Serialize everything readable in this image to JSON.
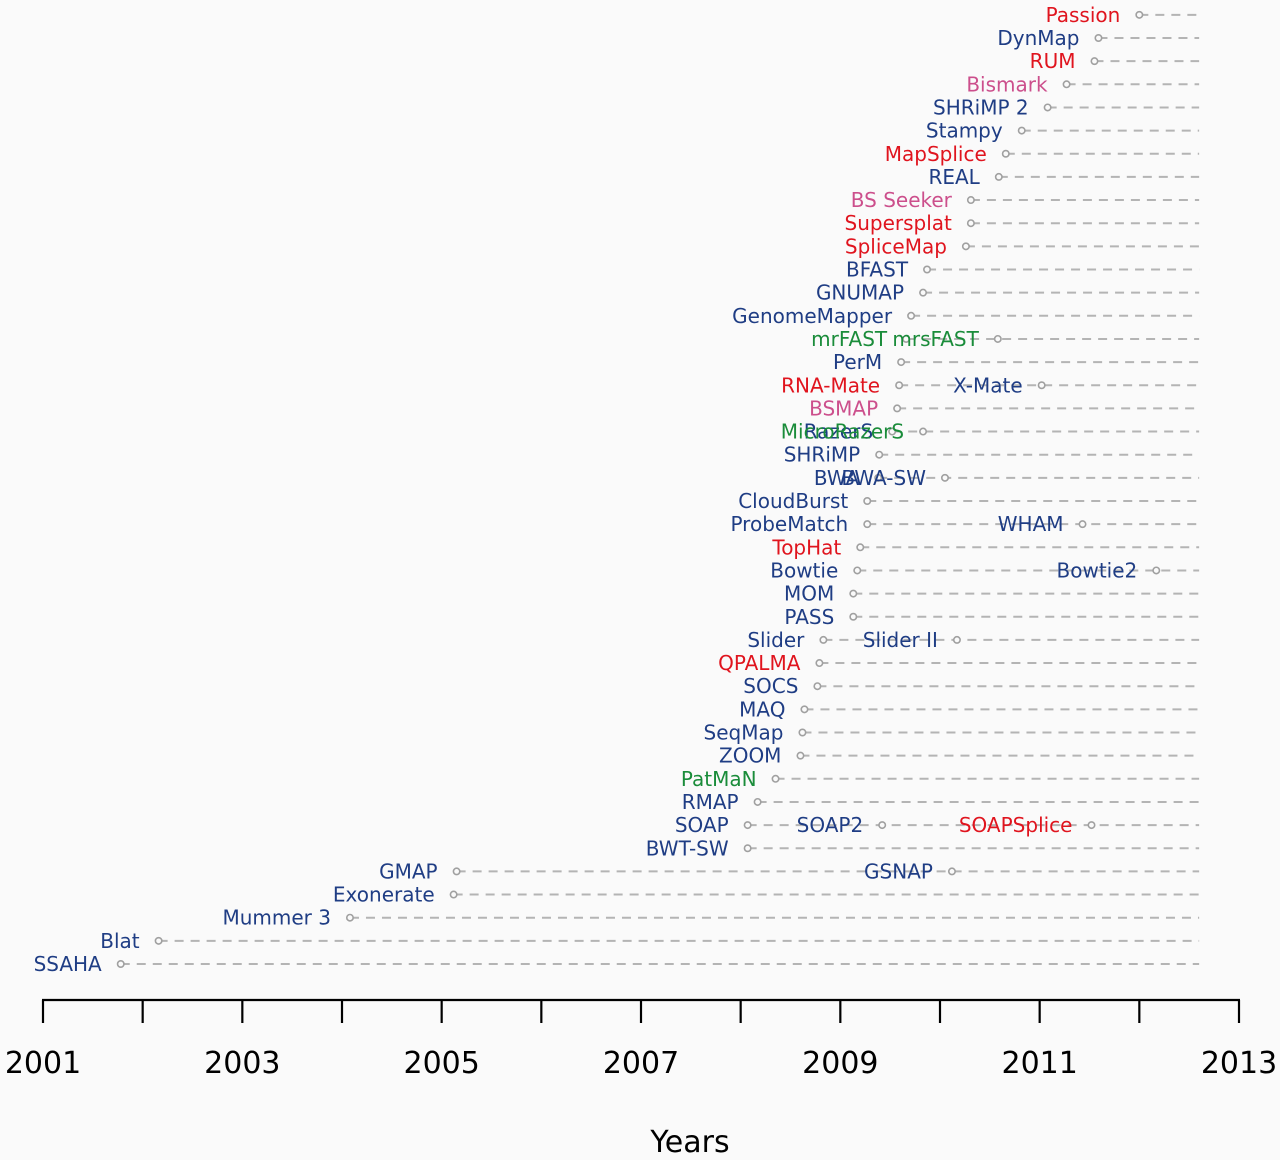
{
  "chart_data": {
    "type": "scatter",
    "xlabel": "Years",
    "xlim": [
      2001,
      2013
    ],
    "x_ticks": [
      2001,
      2002,
      2003,
      2004,
      2005,
      2006,
      2007,
      2008,
      2009,
      2010,
      2011,
      2012,
      2013
    ],
    "x_tick_labels": [
      "2001",
      "2003",
      "2005",
      "2007",
      "2009",
      "2011",
      "2013"
    ],
    "x_tick_label_values": [
      2001,
      2003,
      2005,
      2007,
      2009,
      2011,
      2013
    ],
    "timeline_end": 2012.6,
    "colors": {
      "dna": "#1f3d84",
      "rna": "#e0141e",
      "bisulfite": "#cc4f8c",
      "mirna": "#1a8c3a"
    },
    "rows": [
      {
        "releases": [
          {
            "label": "SSAHA",
            "year": 2001.78,
            "group": "dna"
          }
        ]
      },
      {
        "releases": [
          {
            "label": "Blat",
            "year": 2002.16,
            "group": "dna"
          }
        ]
      },
      {
        "releases": [
          {
            "label": "Mummer 3",
            "year": 2004.08,
            "group": "dna"
          }
        ]
      },
      {
        "releases": [
          {
            "label": "Exonerate",
            "year": 2005.12,
            "group": "dna"
          }
        ]
      },
      {
        "releases": [
          {
            "label": "GMAP",
            "year": 2005.15,
            "group": "dna"
          },
          {
            "label": "GSNAP",
            "year": 2010.12,
            "group": "dna"
          }
        ]
      },
      {
        "releases": [
          {
            "label": "BWT-SW",
            "year": 2008.07,
            "group": "dna"
          }
        ]
      },
      {
        "releases": [
          {
            "label": "SOAP",
            "year": 2008.07,
            "group": "dna"
          },
          {
            "label": "SOAP2",
            "year": 2009.42,
            "group": "dna"
          },
          {
            "label": "SOAPSplice",
            "year": 2011.52,
            "group": "rna"
          }
        ]
      },
      {
        "releases": [
          {
            "label": "RMAP",
            "year": 2008.17,
            "group": "dna"
          }
        ]
      },
      {
        "releases": [
          {
            "label": "PatMaN",
            "year": 2008.35,
            "group": "mirna"
          }
        ]
      },
      {
        "releases": [
          {
            "label": "ZOOM",
            "year": 2008.6,
            "group": "dna"
          }
        ]
      },
      {
        "releases": [
          {
            "label": "SeqMap",
            "year": 2008.62,
            "group": "dna"
          }
        ]
      },
      {
        "releases": [
          {
            "label": "MAQ",
            "year": 2008.64,
            "group": "dna"
          }
        ]
      },
      {
        "releases": [
          {
            "label": "SOCS",
            "year": 2008.77,
            "group": "dna"
          }
        ]
      },
      {
        "releases": [
          {
            "label": "QPALMA",
            "year": 2008.79,
            "group": "rna"
          }
        ]
      },
      {
        "releases": [
          {
            "label": "Slider",
            "year": 2008.83,
            "group": "dna"
          },
          {
            "label": "Slider II",
            "year": 2010.17,
            "group": "dna"
          }
        ]
      },
      {
        "releases": [
          {
            "label": "PASS",
            "year": 2009.13,
            "group": "dna"
          }
        ]
      },
      {
        "releases": [
          {
            "label": "MOM",
            "year": 2009.13,
            "group": "dna"
          }
        ]
      },
      {
        "releases": [
          {
            "label": "Bowtie",
            "year": 2009.17,
            "group": "dna"
          },
          {
            "label": "Bowtie2",
            "year": 2012.17,
            "group": "dna"
          }
        ]
      },
      {
        "releases": [
          {
            "label": "TopHat",
            "year": 2009.2,
            "group": "rna"
          }
        ]
      },
      {
        "releases": [
          {
            "label": "ProbeMatch",
            "year": 2009.27,
            "group": "dna"
          },
          {
            "label": "WHAM",
            "year": 2011.43,
            "group": "dna"
          }
        ]
      },
      {
        "releases": [
          {
            "label": "CloudBurst",
            "year": 2009.27,
            "group": "dna"
          }
        ]
      },
      {
        "releases": [
          {
            "label": "BWA",
            "year": 2009.38,
            "group": "dna"
          },
          {
            "label": "BWA-SW",
            "year": 2010.05,
            "group": "dna"
          }
        ]
      },
      {
        "releases": [
          {
            "label": "SHRiMP",
            "year": 2009.39,
            "group": "dna"
          }
        ]
      },
      {
        "releases": [
          {
            "label": "RazerS",
            "year": 2009.52,
            "group": "dna"
          },
          {
            "label": "MicroRazerS",
            "year": 2009.83,
            "group": "mirna"
          }
        ]
      },
      {
        "releases": [
          {
            "label": "BSMAP",
            "year": 2009.57,
            "group": "bisulfite"
          }
        ]
      },
      {
        "releases": [
          {
            "label": "RNA-Mate",
            "year": 2009.59,
            "group": "rna"
          },
          {
            "label": "X-Mate",
            "year": 2011.02,
            "group": "dna"
          }
        ]
      },
      {
        "releases": [
          {
            "label": "PerM",
            "year": 2009.61,
            "group": "dna"
          }
        ]
      },
      {
        "releases": [
          {
            "label": "mrFAST",
            "year": 2009.66,
            "group": "mirna"
          },
          {
            "label": "mrsFAST",
            "year": 2010.58,
            "group": "mirna"
          }
        ]
      },
      {
        "releases": [
          {
            "label": "GenomeMapper",
            "year": 2009.71,
            "group": "dna"
          }
        ]
      },
      {
        "releases": [
          {
            "label": "GNUMAP",
            "year": 2009.83,
            "group": "dna"
          }
        ]
      },
      {
        "releases": [
          {
            "label": "BFAST",
            "year": 2009.87,
            "group": "dna"
          }
        ]
      },
      {
        "releases": [
          {
            "label": "SpliceMap",
            "year": 2010.26,
            "group": "rna"
          }
        ]
      },
      {
        "releases": [
          {
            "label": "Supersplat",
            "year": 2010.31,
            "group": "rna"
          }
        ]
      },
      {
        "releases": [
          {
            "label": "BS Seeker",
            "year": 2010.31,
            "group": "bisulfite"
          }
        ]
      },
      {
        "releases": [
          {
            "label": "REAL",
            "year": 2010.59,
            "group": "dna"
          }
        ]
      },
      {
        "releases": [
          {
            "label": "MapSplice",
            "year": 2010.66,
            "group": "rna"
          }
        ]
      },
      {
        "releases": [
          {
            "label": "Stampy",
            "year": 2010.82,
            "group": "dna"
          }
        ]
      },
      {
        "releases": [
          {
            "label": "SHRiMP 2",
            "year": 2011.08,
            "group": "dna"
          }
        ]
      },
      {
        "releases": [
          {
            "label": "Bismark",
            "year": 2011.27,
            "group": "bisulfite"
          }
        ]
      },
      {
        "releases": [
          {
            "label": "RUM",
            "year": 2011.55,
            "group": "rna"
          }
        ]
      },
      {
        "releases": [
          {
            "label": "DynMap",
            "year": 2011.59,
            "group": "dna"
          }
        ]
      },
      {
        "releases": [
          {
            "label": "Passion",
            "year": 2012.0,
            "group": "rna"
          }
        ]
      }
    ]
  }
}
